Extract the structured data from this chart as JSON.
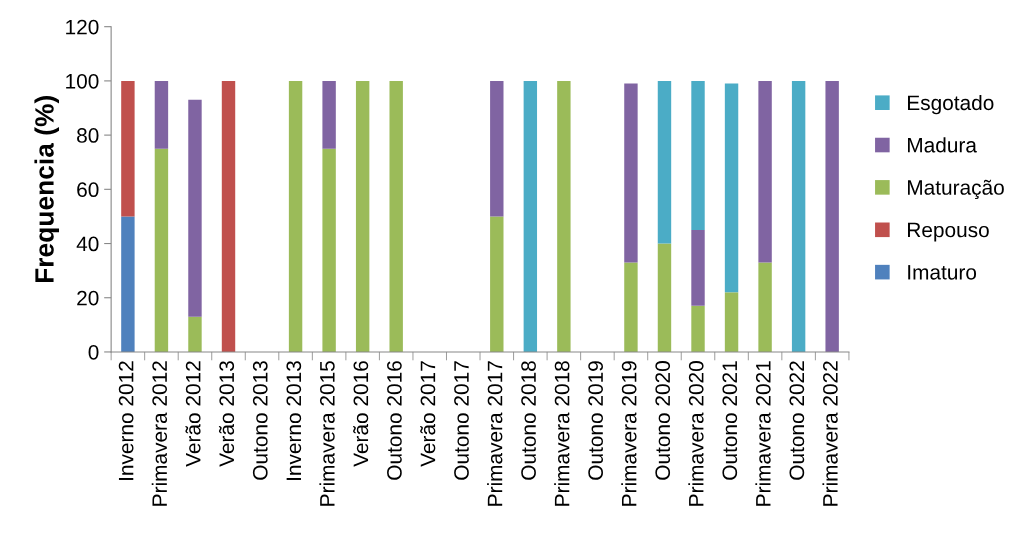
{
  "chart_data": {
    "type": "bar",
    "stacked": true,
    "ylabel": "Frequencia (%)",
    "categories": [
      "Inverno 2012",
      "Primavera 2012",
      "Verão 2012",
      "Verão 2013",
      "Outono 2013",
      "Inverno 2013",
      "Primavera 2015",
      "Verão 2016",
      "Outono 2016",
      "Verão 2017",
      "Outono 2017",
      "Primavera 2017",
      "Outono 2018",
      "Primavera 2018",
      "Outono 2019",
      "Primavera 2019",
      "Outono 2020",
      "Primavera 2020",
      "Outono 2021",
      "Primavera 2021",
      "Outono 2022",
      "Primavera 2022"
    ],
    "series": [
      {
        "name": "Imaturo",
        "color": "#4f81bd",
        "values": [
          50,
          null,
          null,
          null,
          null,
          null,
          null,
          null,
          null,
          null,
          null,
          null,
          null,
          null,
          null,
          null,
          null,
          null,
          null,
          null,
          null,
          null
        ]
      },
      {
        "name": "Repouso",
        "color": "#c0504d",
        "values": [
          50,
          null,
          null,
          100,
          null,
          null,
          null,
          null,
          null,
          null,
          null,
          null,
          null,
          null,
          null,
          null,
          null,
          null,
          null,
          null,
          null,
          null
        ]
      },
      {
        "name": "Maturação",
        "color": "#9bbb59",
        "values": [
          null,
          75,
          13,
          null,
          null,
          100,
          75,
          100,
          100,
          null,
          null,
          50,
          null,
          100,
          null,
          33,
          40,
          17,
          22,
          33,
          null,
          null
        ]
      },
      {
        "name": "Madura",
        "color": "#8064a2",
        "values": [
          null,
          25,
          80,
          null,
          null,
          null,
          25,
          null,
          null,
          null,
          null,
          50,
          null,
          null,
          null,
          66,
          null,
          28,
          null,
          67,
          null,
          100
        ]
      },
      {
        "name": "Esgotado",
        "color": "#4bacc6",
        "values": [
          null,
          null,
          null,
          null,
          null,
          null,
          null,
          null,
          null,
          null,
          null,
          null,
          100,
          null,
          null,
          null,
          60,
          55,
          77,
          null,
          100,
          null
        ]
      }
    ],
    "ylim": [
      0,
      120
    ],
    "yticks": [
      0,
      20,
      40,
      60,
      80,
      100,
      120
    ],
    "grid": false,
    "legend": "right"
  }
}
